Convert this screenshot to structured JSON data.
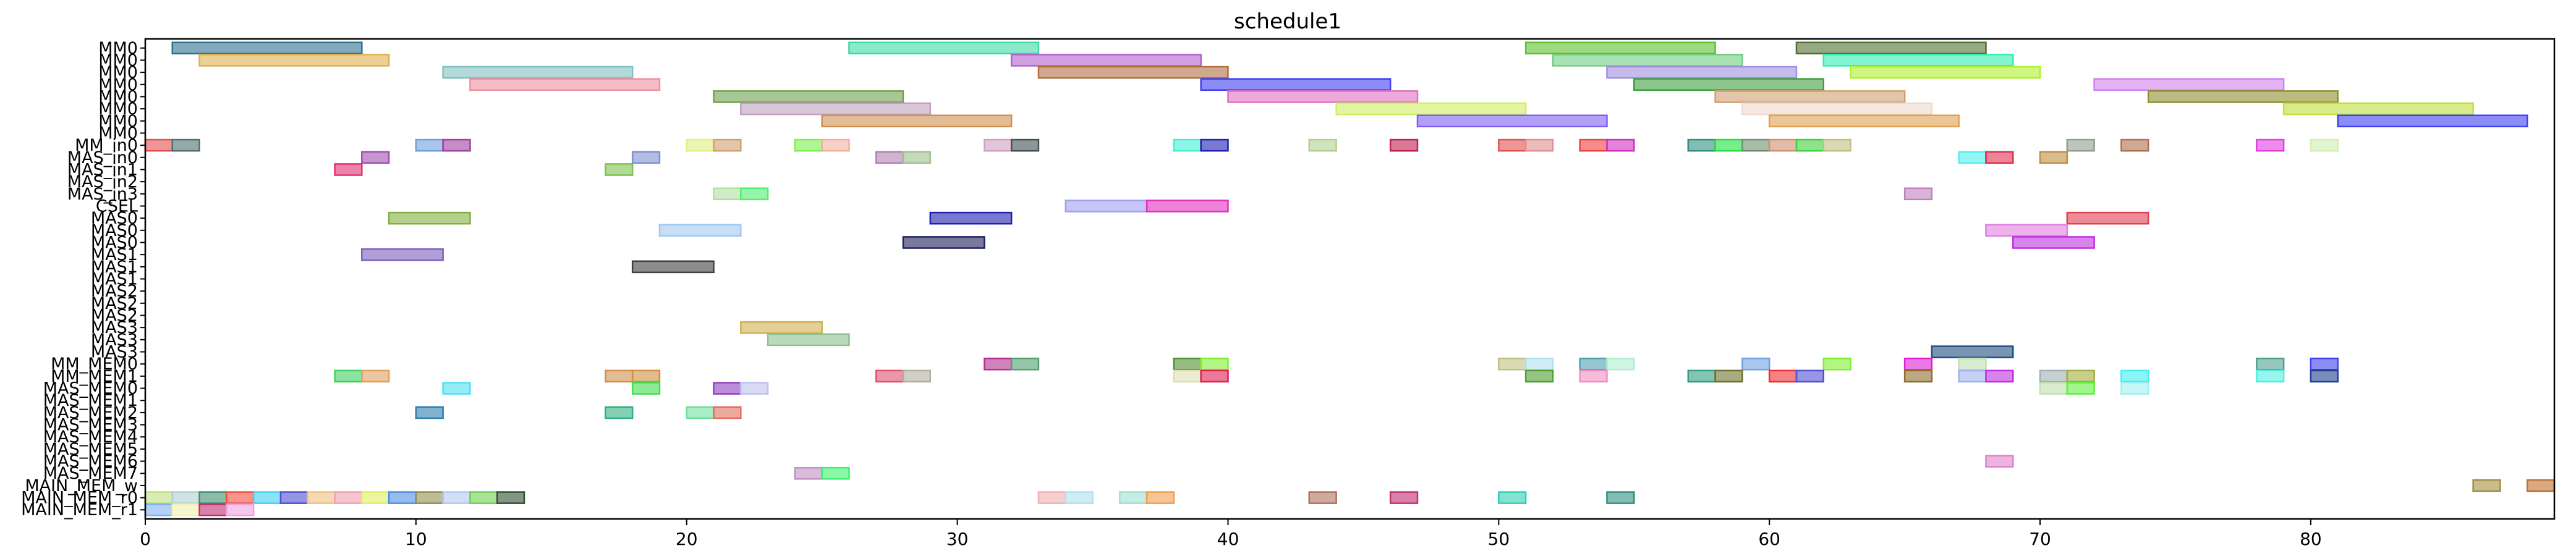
{
  "chart_data": {
    "type": "gantt",
    "title": "schedule1",
    "xlim": [
      0,
      89
    ],
    "x_ticks": [
      0,
      10,
      20,
      30,
      40,
      50,
      60,
      70,
      80
    ],
    "rows": [
      "MM0",
      "MM0",
      "MM0",
      "MM0",
      "MM0",
      "MM0",
      "MM0",
      "MM0",
      "MM_in0",
      "MAS_in0",
      "MAS_in1",
      "MAS_in2",
      "MAS_in3",
      "CSEL",
      "MAS0",
      "MAS0",
      "MAS0",
      "MAS1",
      "MAS1",
      "MAS1",
      "MAS2",
      "MAS2",
      "MAS2",
      "MAS3",
      "MAS3",
      "MAS3",
      "MM_MEM0",
      "MM_MEM1",
      "MAS_MEM0",
      "MAS_MEM1",
      "MAS_MEM2",
      "MAS_MEM3",
      "MAS_MEM4",
      "MAS_MEM5",
      "MAS_MEM6",
      "MAS_MEM7",
      "MAIN_MEM_w",
      "MAIN_MEM_r0",
      "MAIN_MEM_r1"
    ],
    "tasks": [
      {
        "row": 0,
        "start": 1,
        "end": 8,
        "color": "#2f6f8f"
      },
      {
        "row": 0,
        "start": 26,
        "end": 33,
        "color": "#3fd9a8"
      },
      {
        "row": 0,
        "start": 51,
        "end": 58,
        "color": "#5fbf2f"
      },
      {
        "row": 0,
        "start": 61,
        "end": 68,
        "color": "#4f6f2f"
      },
      {
        "row": 1,
        "start": 2,
        "end": 9,
        "color": "#e0b04f"
      },
      {
        "row": 1,
        "start": 32,
        "end": 39,
        "color": "#b060d0"
      },
      {
        "row": 1,
        "start": 52,
        "end": 59,
        "color": "#6fcf7f"
      },
      {
        "row": 1,
        "start": 62,
        "end": 69,
        "color": "#2fefb0"
      },
      {
        "row": 2,
        "start": 11,
        "end": 18,
        "color": "#80c0c0"
      },
      {
        "row": 2,
        "start": 33,
        "end": 40,
        "color": "#b06f3f"
      },
      {
        "row": 2,
        "start": 54,
        "end": 61,
        "color": "#a090e0"
      },
      {
        "row": 2,
        "start": 63,
        "end": 70,
        "color": "#b0f02f"
      },
      {
        "row": 3,
        "start": 12,
        "end": 19,
        "color": "#f08fa0"
      },
      {
        "row": 3,
        "start": 39,
        "end": 46,
        "color": "#4040f0"
      },
      {
        "row": 3,
        "start": 55,
        "end": 62,
        "color": "#3fa03f"
      },
      {
        "row": 3,
        "start": 72,
        "end": 79,
        "color": "#d080f0"
      },
      {
        "row": 4,
        "start": 21,
        "end": 28,
        "color": "#6fa04f"
      },
      {
        "row": 4,
        "start": 40,
        "end": 47,
        "color": "#e070c0"
      },
      {
        "row": 4,
        "start": 58,
        "end": 65,
        "color": "#d09f6f"
      },
      {
        "row": 4,
        "start": 74,
        "end": 81,
        "color": "#8f8f2f"
      },
      {
        "row": 5,
        "start": 22,
        "end": 29,
        "color": "#c0a0c0"
      },
      {
        "row": 5,
        "start": 44,
        "end": 51,
        "color": "#d0ef60"
      },
      {
        "row": 5,
        "start": 59,
        "end": 66,
        "color": "#f0d8d0"
      },
      {
        "row": 5,
        "start": 79,
        "end": 86,
        "color": "#c0df40"
      },
      {
        "row": 6,
        "start": 25,
        "end": 32,
        "color": "#d08f4f"
      },
      {
        "row": 6,
        "start": 47,
        "end": 54,
        "color": "#7f5ff0"
      },
      {
        "row": 6,
        "start": 60,
        "end": 67,
        "color": "#e0a050"
      },
      {
        "row": 6,
        "start": 81,
        "end": 88,
        "color": "#4040f0"
      },
      {
        "row": 8,
        "start": 0,
        "end": 1,
        "color": "#e05050"
      },
      {
        "row": 8,
        "start": 1,
        "end": 2,
        "color": "#506f6f"
      },
      {
        "row": 8,
        "start": 10,
        "end": 11,
        "color": "#6f9fe0"
      },
      {
        "row": 8,
        "start": 11,
        "end": 12,
        "color": "#a03f9f"
      },
      {
        "row": 8,
        "start": 20,
        "end": 21,
        "color": "#e0ef80"
      },
      {
        "row": 8,
        "start": 21,
        "end": 22,
        "color": "#d0a070"
      },
      {
        "row": 8,
        "start": 24,
        "end": 25,
        "color": "#7fef4f"
      },
      {
        "row": 8,
        "start": 25,
        "end": 26,
        "color": "#f0b0a0"
      },
      {
        "row": 8,
        "start": 31,
        "end": 32,
        "color": "#d0a0c0"
      },
      {
        "row": 8,
        "start": 32,
        "end": 33,
        "color": "#405050"
      },
      {
        "row": 8,
        "start": 38,
        "end": 39,
        "color": "#40efd0"
      },
      {
        "row": 8,
        "start": 39,
        "end": 40,
        "color": "#2020b0"
      },
      {
        "row": 8,
        "start": 43,
        "end": 44,
        "color": "#b0d090"
      },
      {
        "row": 8,
        "start": 46,
        "end": 47,
        "color": "#c0204f"
      },
      {
        "row": 8,
        "start": 50,
        "end": 51,
        "color": "#e05050"
      },
      {
        "row": 8,
        "start": 51,
        "end": 52,
        "color": "#e09090"
      },
      {
        "row": 8,
        "start": 53,
        "end": 54,
        "color": "#f04040"
      },
      {
        "row": 8,
        "start": 54,
        "end": 55,
        "color": "#d030c0"
      },
      {
        "row": 8,
        "start": 57,
        "end": 58,
        "color": "#308f7f"
      },
      {
        "row": 8,
        "start": 58,
        "end": 59,
        "color": "#20e040"
      },
      {
        "row": 8,
        "start": 59,
        "end": 60,
        "color": "#6f8f6f"
      },
      {
        "row": 8,
        "start": 60,
        "end": 61,
        "color": "#d09070"
      },
      {
        "row": 8,
        "start": 61,
        "end": 62,
        "color": "#40d040"
      },
      {
        "row": 8,
        "start": 62,
        "end": 63,
        "color": "#c0c080"
      },
      {
        "row": 8,
        "start": 71,
        "end": 72,
        "color": "#90a090"
      },
      {
        "row": 8,
        "start": 73,
        "end": 74,
        "color": "#b06f4f"
      },
      {
        "row": 8,
        "start": 78,
        "end": 79,
        "color": "#e040e0"
      },
      {
        "row": 8,
        "start": 80,
        "end": 81,
        "color": "#d0efb0"
      },
      {
        "row": 9,
        "start": 8,
        "end": 9,
        "color": "#a050b0"
      },
      {
        "row": 9,
        "start": 18,
        "end": 19,
        "color": "#8090d0"
      },
      {
        "row": 9,
        "start": 27,
        "end": 28,
        "color": "#b080b0"
      },
      {
        "row": 9,
        "start": 28,
        "end": 29,
        "color": "#a0c090"
      },
      {
        "row": 9,
        "start": 67,
        "end": 68,
        "color": "#50efef"
      },
      {
        "row": 9,
        "start": 68,
        "end": 69,
        "color": "#e03050"
      },
      {
        "row": 9,
        "start": 70,
        "end": 71,
        "color": "#c09040"
      },
      {
        "row": 10,
        "start": 7,
        "end": 8,
        "color": "#e0306f"
      },
      {
        "row": 10,
        "start": 17,
        "end": 18,
        "color": "#7fc04f"
      },
      {
        "row": 12,
        "start": 21,
        "end": 22,
        "color": "#b0e0a0"
      },
      {
        "row": 12,
        "start": 22,
        "end": 23,
        "color": "#50ef6f"
      },
      {
        "row": 12,
        "start": 65,
        "end": 66,
        "color": "#c080c0"
      },
      {
        "row": 13,
        "start": 34,
        "end": 37,
        "color": "#a0a0f0"
      },
      {
        "row": 13,
        "start": 37,
        "end": 40,
        "color": "#e030c0"
      },
      {
        "row": 14,
        "start": 9,
        "end": 12,
        "color": "#80b040"
      },
      {
        "row": 14,
        "start": 29,
        "end": 32,
        "color": "#2020b0"
      },
      {
        "row": 14,
        "start": 71,
        "end": 74,
        "color": "#e04050"
      },
      {
        "row": 15,
        "start": 19,
        "end": 22,
        "color": "#a0c8f0"
      },
      {
        "row": 15,
        "start": 68,
        "end": 71,
        "color": "#e080e0"
      },
      {
        "row": 16,
        "start": 28,
        "end": 31,
        "color": "#201f5f"
      },
      {
        "row": 16,
        "start": 69,
        "end": 72,
        "color": "#c030e0"
      },
      {
        "row": 17,
        "start": 8,
        "end": 11,
        "color": "#7f5fc0"
      },
      {
        "row": 18,
        "start": 18,
        "end": 21,
        "color": "#404040"
      },
      {
        "row": 23,
        "start": 22,
        "end": 25,
        "color": "#d0b050"
      },
      {
        "row": 24,
        "start": 23,
        "end": 26,
        "color": "#90c090"
      },
      {
        "row": 25,
        "start": 66,
        "end": 69,
        "color": "#204f7f"
      },
      {
        "row": 26,
        "start": 31,
        "end": 32,
        "color": "#b02f8f"
      },
      {
        "row": 26,
        "start": 32,
        "end": 33,
        "color": "#50a06f"
      },
      {
        "row": 26,
        "start": 38,
        "end": 39,
        "color": "#4f8f2f"
      },
      {
        "row": 26,
        "start": 39,
        "end": 40,
        "color": "#7fef2f"
      },
      {
        "row": 26,
        "start": 50,
        "end": 51,
        "color": "#c0c080"
      },
      {
        "row": 26,
        "start": 51,
        "end": 52,
        "color": "#b0e0f0"
      },
      {
        "row": 26,
        "start": 53,
        "end": 54,
        "color": "#50a0b0"
      },
      {
        "row": 26,
        "start": 54,
        "end": 55,
        "color": "#b0f0d0"
      },
      {
        "row": 26,
        "start": 59,
        "end": 60,
        "color": "#70a0e0"
      },
      {
        "row": 26,
        "start": 62,
        "end": 63,
        "color": "#7fef2f"
      },
      {
        "row": 26,
        "start": 65,
        "end": 66,
        "color": "#e020d0"
      },
      {
        "row": 26,
        "start": 67,
        "end": 68,
        "color": "#c0e0b0"
      },
      {
        "row": 26,
        "start": 78,
        "end": 79,
        "color": "#50a090"
      },
      {
        "row": 26,
        "start": 80,
        "end": 81,
        "color": "#4040f0"
      },
      {
        "row": 27,
        "start": 7,
        "end": 8,
        "color": "#40d05f"
      },
      {
        "row": 27,
        "start": 8,
        "end": 9,
        "color": "#e0a060"
      },
      {
        "row": 27,
        "start": 17,
        "end": 18,
        "color": "#d08f4f"
      },
      {
        "row": 27,
        "start": 18,
        "end": 19,
        "color": "#d09040"
      },
      {
        "row": 27,
        "start": 27,
        "end": 28,
        "color": "#e05070"
      },
      {
        "row": 27,
        "start": 28,
        "end": 29,
        "color": "#b0b0a0"
      },
      {
        "row": 27,
        "start": 38,
        "end": 39,
        "color": "#e0e0b0"
      },
      {
        "row": 27,
        "start": 39,
        "end": 40,
        "color": "#e02050"
      },
      {
        "row": 27,
        "start": 51,
        "end": 52,
        "color": "#4f9f2f"
      },
      {
        "row": 27,
        "start": 53,
        "end": 54,
        "color": "#f090c0"
      },
      {
        "row": 27,
        "start": 57,
        "end": 58,
        "color": "#309f7f"
      },
      {
        "row": 27,
        "start": 58,
        "end": 59,
        "color": "#6f6f2f"
      },
      {
        "row": 27,
        "start": 60,
        "end": 61,
        "color": "#f03030"
      },
      {
        "row": 27,
        "start": 61,
        "end": 62,
        "color": "#5050d0"
      },
      {
        "row": 27,
        "start": 65,
        "end": 66,
        "color": "#8f6f2f"
      },
      {
        "row": 27,
        "start": 67,
        "end": 68,
        "color": "#a0b0f0"
      },
      {
        "row": 27,
        "start": 68,
        "end": 69,
        "color": "#c030e0"
      },
      {
        "row": 27,
        "start": 70,
        "end": 71,
        "color": "#a0b0b0"
      },
      {
        "row": 27,
        "start": 71,
        "end": 72,
        "color": "#a0b040"
      },
      {
        "row": 27,
        "start": 73,
        "end": 74,
        "color": "#40f0f0"
      },
      {
        "row": 27,
        "start": 78,
        "end": 79,
        "color": "#50f0e0"
      },
      {
        "row": 27,
        "start": 80,
        "end": 81,
        "color": "#203f8f"
      },
      {
        "row": 28,
        "start": 11,
        "end": 12,
        "color": "#50e0f0"
      },
      {
        "row": 28,
        "start": 18,
        "end": 19,
        "color": "#40df4f"
      },
      {
        "row": 28,
        "start": 21,
        "end": 22,
        "color": "#9040c0"
      },
      {
        "row": 28,
        "start": 22,
        "end": 23,
        "color": "#c0c0f0"
      },
      {
        "row": 28,
        "start": 70,
        "end": 71,
        "color": "#c0e0b0"
      },
      {
        "row": 28,
        "start": 71,
        "end": 72,
        "color": "#60ef40"
      },
      {
        "row": 28,
        "start": 73,
        "end": 74,
        "color": "#a0f0f0"
      },
      {
        "row": 30,
        "start": 10,
        "end": 11,
        "color": "#2f7faf"
      },
      {
        "row": 30,
        "start": 17,
        "end": 18,
        "color": "#30b080"
      },
      {
        "row": 30,
        "start": 20,
        "end": 21,
        "color": "#70df9f"
      },
      {
        "row": 30,
        "start": 21,
        "end": 22,
        "color": "#e06f60"
      },
      {
        "row": 34,
        "start": 68,
        "end": 69,
        "color": "#e080d0"
      },
      {
        "row": 35,
        "start": 24,
        "end": 25,
        "color": "#c090c0"
      },
      {
        "row": 35,
        "start": 25,
        "end": 26,
        "color": "#40f06f"
      },
      {
        "row": 36,
        "start": 86,
        "end": 87,
        "color": "#a08f40"
      },
      {
        "row": 36,
        "start": 88,
        "end": 89,
        "color": "#c06f30"
      },
      {
        "row": 37,
        "start": 0,
        "end": 1,
        "color": "#c0e080"
      },
      {
        "row": 37,
        "start": 1,
        "end": 2,
        "color": "#b0d0d0"
      },
      {
        "row": 37,
        "start": 2,
        "end": 3,
        "color": "#3f8f6f"
      },
      {
        "row": 37,
        "start": 3,
        "end": 4,
        "color": "#f04f40"
      },
      {
        "row": 37,
        "start": 4,
        "end": 5,
        "color": "#40d0f0"
      },
      {
        "row": 37,
        "start": 5,
        "end": 6,
        "color": "#4f4fd0"
      },
      {
        "row": 37,
        "start": 6,
        "end": 7,
        "color": "#f0c080"
      },
      {
        "row": 37,
        "start": 7,
        "end": 8,
        "color": "#f0a0b0"
      },
      {
        "row": 37,
        "start": 8,
        "end": 9,
        "color": "#e0ef60"
      },
      {
        "row": 37,
        "start": 9,
        "end": 10,
        "color": "#4f8fe0"
      },
      {
        "row": 37,
        "start": 10,
        "end": 11,
        "color": "#8f8f50"
      },
      {
        "row": 37,
        "start": 11,
        "end": 12,
        "color": "#b0c8f0"
      },
      {
        "row": 37,
        "start": 12,
        "end": 13,
        "color": "#6fd050"
      },
      {
        "row": 37,
        "start": 13,
        "end": 14,
        "color": "#305030"
      },
      {
        "row": 37,
        "start": 33,
        "end": 34,
        "color": "#f0b0b0"
      },
      {
        "row": 37,
        "start": 34,
        "end": 35,
        "color": "#b0e0f0"
      },
      {
        "row": 37,
        "start": 36,
        "end": 37,
        "color": "#a0e0d0"
      },
      {
        "row": 37,
        "start": 37,
        "end": 38,
        "color": "#f09f4f"
      },
      {
        "row": 37,
        "start": 43,
        "end": 44,
        "color": "#b06f5f"
      },
      {
        "row": 37,
        "start": 46,
        "end": 47,
        "color": "#c02f6f"
      },
      {
        "row": 37,
        "start": 50,
        "end": 51,
        "color": "#30d0b0"
      },
      {
        "row": 37,
        "start": 54,
        "end": 55,
        "color": "#308f7f"
      },
      {
        "row": 38,
        "start": 0,
        "end": 1,
        "color": "#80b0f0"
      },
      {
        "row": 38,
        "start": 1,
        "end": 2,
        "color": "#f0f0b0"
      },
      {
        "row": 38,
        "start": 2,
        "end": 3,
        "color": "#c02f6f"
      },
      {
        "row": 38,
        "start": 3,
        "end": 4,
        "color": "#f0a0e0"
      }
    ]
  }
}
